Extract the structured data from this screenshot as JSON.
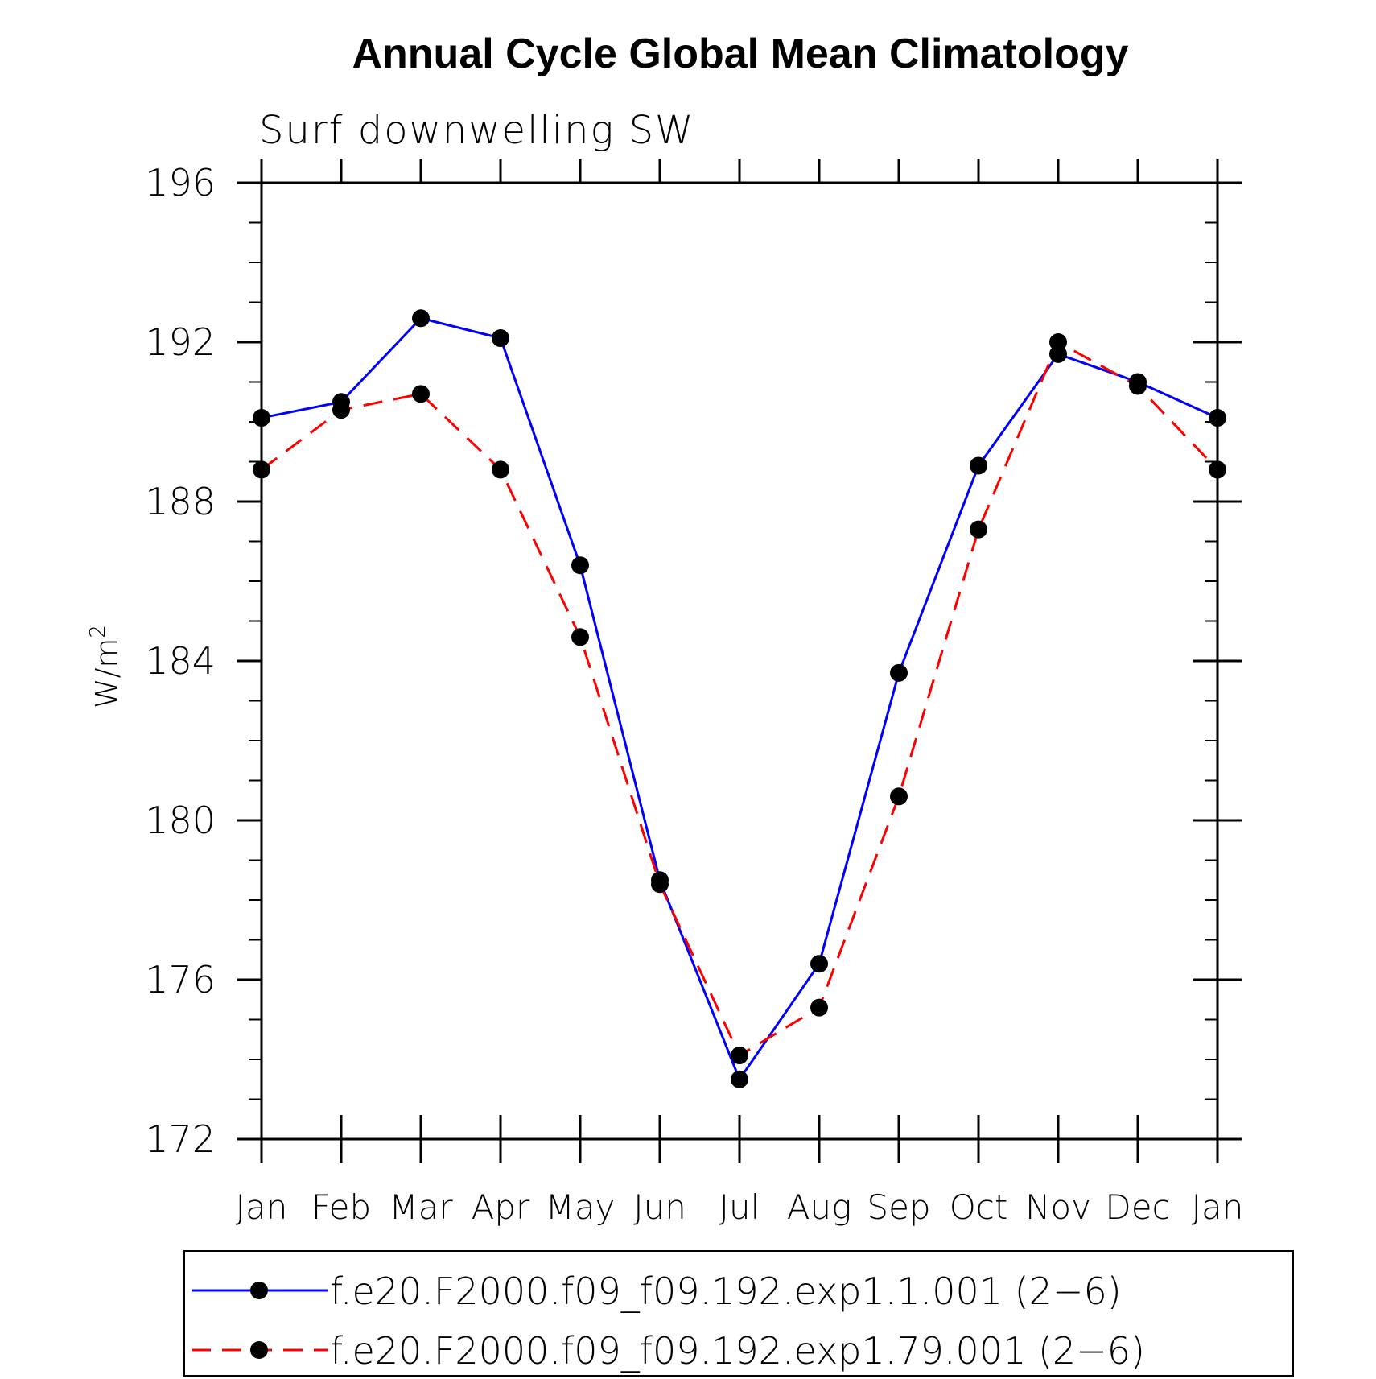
{
  "chart_data": {
    "type": "line",
    "title": "Annual Cycle Global Mean Climatology",
    "subtitle": "Surf downwelling SW",
    "ylabel_base": "W/m",
    "ylabel_sup": "2",
    "xlabel": "",
    "categories": [
      "Jan",
      "Feb",
      "Mar",
      "Apr",
      "May",
      "Jun",
      "Jul",
      "Aug",
      "Sep",
      "Oct",
      "Nov",
      "Dec",
      "Jan"
    ],
    "yticks": [
      172,
      176,
      180,
      184,
      188,
      192,
      196
    ],
    "ytick_labels": [
      "172",
      "176",
      "180",
      "184",
      "188",
      "192",
      "196"
    ],
    "ylim": [
      172,
      196
    ],
    "grid": false,
    "legend_position": "bottom",
    "series": [
      {
        "name": "f.e20.F2000.f09_f09.192.exp1.1.001 (2−6)",
        "color": "#0000ff",
        "dash": "solid",
        "marker": "filled-circle",
        "values": [
          190.1,
          190.5,
          192.6,
          192.1,
          186.4,
          178.5,
          173.5,
          176.4,
          183.7,
          188.9,
          191.7,
          191.0,
          190.1
        ]
      },
      {
        "name": "f.e20.F2000.f09_f09.192.exp1.79.001 (2−6)",
        "color": "#ff0000",
        "dash": "dashed",
        "marker": "filled-circle",
        "values": [
          188.8,
          190.3,
          190.7,
          188.8,
          184.6,
          178.4,
          174.1,
          175.3,
          180.6,
          187.3,
          192.0,
          190.9,
          188.8
        ]
      }
    ]
  }
}
